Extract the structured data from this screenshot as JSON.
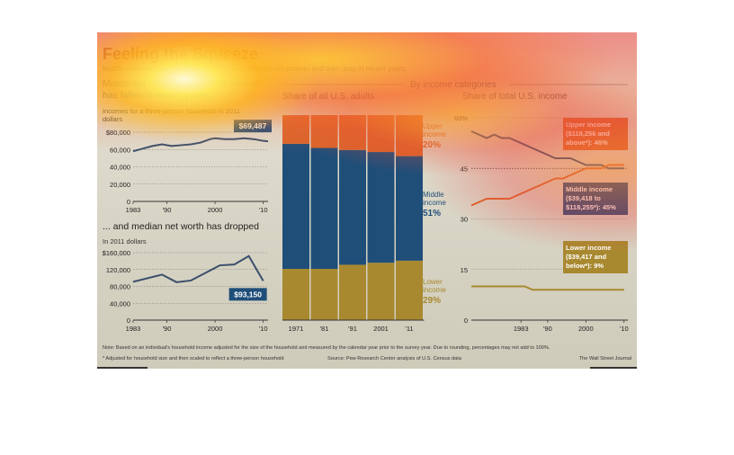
{
  "header": {
    "title": "Feeling the Squeeze",
    "subtitle": "Middle-class families have seen their household incomes plateau and then drop in recent years."
  },
  "footer": {
    "note": "Note: Based on an individual's household income adjusted for the size of the household and measured by the calendar year prior to the survey year. Due to rounding, percentages may not add to 100%.",
    "footnote": "* Adjusted for household size and then scaled to reflect a three-person household",
    "source": "Source: Pew Research Center analysis of U.S. Census data",
    "credit": "The Wall Street Journal"
  },
  "section_label": "By income categories",
  "colors": {
    "line": "#3b4f6b",
    "navy": "#1f4e79",
    "orange": "#d9652b",
    "gold": "#a8892f",
    "label_navy": "#1f4e79"
  },
  "chart_data": [
    {
      "type": "line",
      "title": "Middle-tier median household income has fallen in recent years...",
      "ylabel": "Incomes for a three-person household in 2011 dollars",
      "x": [
        1983,
        1985,
        1987,
        1989,
        1991,
        1993,
        1995,
        1997,
        1999,
        2000,
        2002,
        2004,
        2006,
        2008,
        2010,
        2011
      ],
      "values": [
        58000,
        61000,
        64000,
        66000,
        64000,
        65000,
        66000,
        68000,
        72000,
        73000,
        72000,
        72000,
        73000,
        72000,
        70000,
        69487
      ],
      "ylim": [
        0,
        80000
      ],
      "yticks": [
        "$80,000",
        "60,000",
        "40,000",
        "20,000",
        "0"
      ],
      "xticks": [
        "1983",
        "'90",
        "2000",
        "'10"
      ],
      "callout": "$69,487"
    },
    {
      "type": "line",
      "title": "... and median net worth has dropped",
      "ylabel": "In 2011 dollars",
      "x": [
        1983,
        1989,
        1992,
        1995,
        1998,
        2001,
        2004,
        2007,
        2010
      ],
      "values": [
        91000,
        108000,
        90000,
        94000,
        112000,
        130000,
        132000,
        152000,
        93150
      ],
      "ylim": [
        0,
        160000
      ],
      "yticks": [
        "$160,000",
        "120,000",
        "80,000",
        "40,000",
        "0"
      ],
      "xticks": [
        "1983",
        "'90",
        "2000",
        "'10"
      ],
      "callout": "$93,150"
    },
    {
      "type": "bar",
      "title": "Share of all U.S. adults",
      "categories": [
        "1971",
        "'81",
        "'91",
        "2001",
        "'11"
      ],
      "series": [
        {
          "name": "Lower income",
          "values": [
            25,
            25,
            27,
            28,
            29
          ]
        },
        {
          "name": "Middle income",
          "values": [
            61,
            59,
            56,
            54,
            51
          ]
        },
        {
          "name": "Upper income",
          "values": [
            14,
            16,
            17,
            18,
            20
          ]
        }
      ],
      "labels": [
        {
          "text": "Upper income",
          "value": "20%"
        },
        {
          "text": "Middle income",
          "value": "51%"
        },
        {
          "text": "Lower income",
          "value": "29%"
        }
      ]
    },
    {
      "type": "line",
      "title": "Share of total U.S. income",
      "ylim": [
        0,
        60
      ],
      "yticks": [
        "60%",
        "45",
        "30",
        "15",
        "0"
      ],
      "xticks": [
        "1983",
        "'90",
        "2000",
        "'10"
      ],
      "x": [
        1970,
        1972,
        1974,
        1976,
        1978,
        1980,
        1982,
        1984,
        1986,
        1988,
        1990,
        1992,
        1994,
        1996,
        1998,
        2000,
        2002,
        2004,
        2006,
        2008,
        2010
      ],
      "series": [
        {
          "name": "Middle income ($39,418 to $118,255*): 45%",
          "values": [
            56,
            55,
            54,
            55,
            54,
            54,
            53,
            52,
            51,
            50,
            49,
            48,
            48,
            48,
            47,
            46,
            46,
            46,
            45,
            45,
            45
          ]
        },
        {
          "name": "Upper income ($118,256 and above*): 46%",
          "values": [
            34,
            35,
            36,
            36,
            36,
            36,
            37,
            38,
            39,
            40,
            41,
            42,
            42,
            43,
            44,
            45,
            45,
            45,
            46,
            46,
            46
          ]
        },
        {
          "name": "Lower income ($39,417 and below*): 9%",
          "values": [
            10,
            10,
            10,
            10,
            10,
            10,
            10,
            10,
            9,
            9,
            9,
            9,
            9,
            9,
            9,
            9,
            9,
            9,
            9,
            9,
            9
          ]
        }
      ],
      "callouts": [
        {
          "line1": "Upper income",
          "line2": "($118,256 and",
          "line3": "above*): 46%"
        },
        {
          "line1": "Middle income",
          "line2": "($39,418 to",
          "line3": "$118,255*): 45%"
        },
        {
          "line1": "Lower income",
          "line2": "($39,417 and",
          "line3": "below*): 9%"
        }
      ]
    }
  ]
}
